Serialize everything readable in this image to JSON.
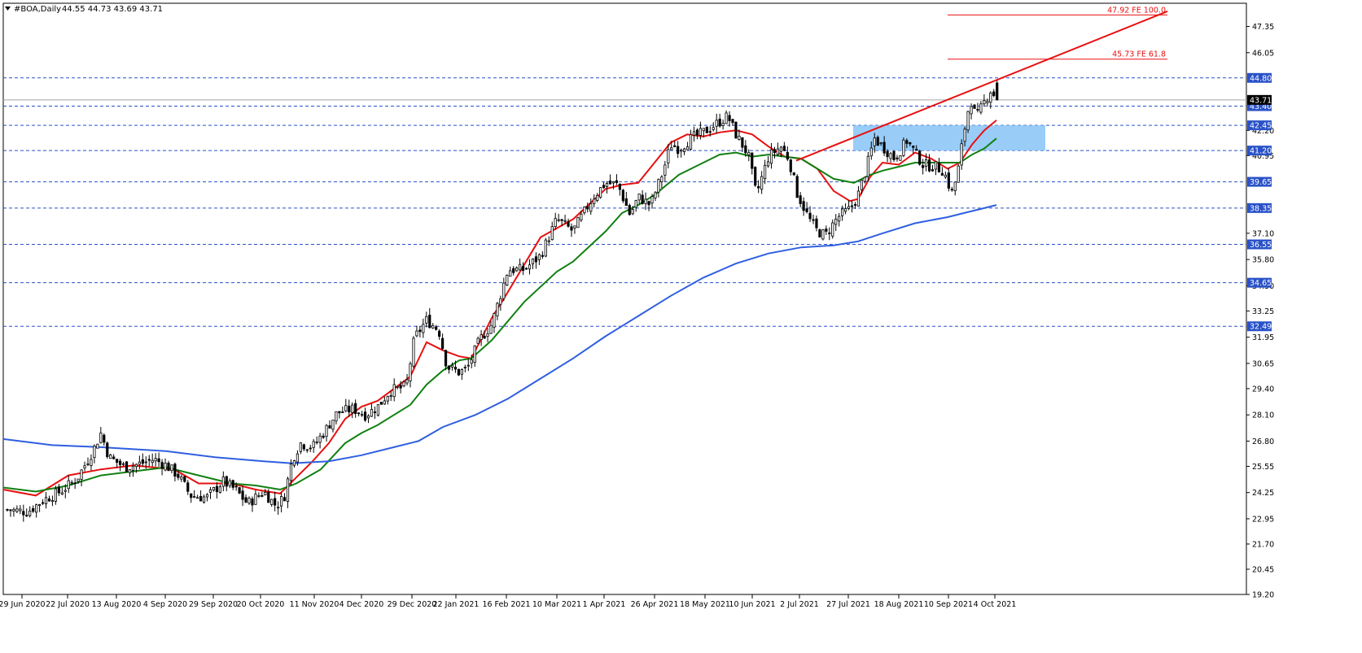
{
  "header": {
    "symbol_label": "#BOA,Daily",
    "ohlc_label": "44.55 44.73 43.69 43.71",
    "menu_icon": "triangle-down-icon"
  },
  "chart_data": {
    "type": "candlestick",
    "title": "#BOA,Daily",
    "last_ohlc": {
      "open": 44.55,
      "high": 44.73,
      "low": 43.69,
      "close": 43.71
    },
    "y_range": [
      19.2,
      48.5
    ],
    "y_ticks": [
      "47.35",
      "46.05",
      "44.80",
      "43.71",
      "43.40",
      "42.45",
      "42.20",
      "41.20",
      "40.95",
      "39.65",
      "38.35",
      "37.10",
      "36.55",
      "35.80",
      "34.65",
      "34.50",
      "33.25",
      "32.49",
      "31.95",
      "30.65",
      "29.40",
      "28.10",
      "26.80",
      "25.55",
      "24.25",
      "22.95",
      "21.70",
      "20.45",
      "19.20"
    ],
    "x_ticks": [
      "29 Jun 2020",
      "22 Jul 2020",
      "13 Aug 2020",
      "4 Sep 2020",
      "29 Sep 2020",
      "20 Oct 2020",
      "11 Nov 2020",
      "4 Dec 2020",
      "29 Dec 2020",
      "22 Jan 2021",
      "16 Feb 2021",
      "10 Mar 2021",
      "1 Apr 2021",
      "26 Apr 2021",
      "18 May 2021",
      "10 Jun 2021",
      "2 Jul 2021",
      "27 Jul 2021",
      "18 Aug 2021",
      "10 Sep 2021",
      "4 Oct 2021"
    ],
    "horizontal_levels": [
      {
        "value": 44.8,
        "label": "44.80"
      },
      {
        "value": 43.4,
        "label": "43.40"
      },
      {
        "value": 42.45,
        "label": "42.45"
      },
      {
        "value": 41.2,
        "label": "41.20"
      },
      {
        "value": 39.65,
        "label": "39.65"
      },
      {
        "value": 38.35,
        "label": "38.35"
      },
      {
        "value": 36.55,
        "label": "36.55"
      },
      {
        "value": 34.65,
        "label": "34.65"
      },
      {
        "value": 32.49,
        "label": "32.49"
      }
    ],
    "current_price": {
      "value": 43.71,
      "label": "43.71"
    },
    "fib_extensions": [
      {
        "value": 47.92,
        "label": "47.92 FE 100.0"
      },
      {
        "value": 45.73,
        "label": "45.73 FE 61.8"
      }
    ],
    "trendline": {
      "from": [
        "2 Jul 2021",
        40.7
      ],
      "to": [
        "after 4 Oct 2021",
        48.1
      ]
    },
    "zone": {
      "from": "27 Jul 2021",
      "to": "after 4 Oct 2021",
      "low": 41.2,
      "high": 42.45
    },
    "moving_averages": [
      {
        "color": "#e81010",
        "anchors": [
          [
            0,
            24.4
          ],
          [
            40,
            24.1
          ],
          [
            80,
            25.1
          ],
          [
            120,
            25.4
          ],
          [
            160,
            25.6
          ],
          [
            210,
            25.4
          ],
          [
            240,
            24.7
          ],
          [
            280,
            24.7
          ],
          [
            310,
            24.4
          ],
          [
            340,
            24.2
          ],
          [
            355,
            24.8
          ],
          [
            380,
            25.8
          ],
          [
            400,
            26.7
          ],
          [
            420,
            27.9
          ],
          [
            440,
            28.5
          ],
          [
            460,
            28.8
          ],
          [
            480,
            29.4
          ],
          [
            500,
            30.0
          ],
          [
            520,
            31.7
          ],
          [
            540,
            31.3
          ],
          [
            560,
            31.0
          ],
          [
            575,
            30.9
          ],
          [
            600,
            32.9
          ],
          [
            620,
            34.2
          ],
          [
            660,
            36.9
          ],
          [
            700,
            37.8
          ],
          [
            740,
            39.3
          ],
          [
            760,
            39.5
          ],
          [
            780,
            39.6
          ],
          [
            800,
            40.6
          ],
          [
            820,
            41.6
          ],
          [
            840,
            42.0
          ],
          [
            860,
            41.9
          ],
          [
            880,
            42.1
          ],
          [
            900,
            42.2
          ],
          [
            920,
            42.0
          ],
          [
            940,
            41.4
          ],
          [
            960,
            40.9
          ],
          [
            980,
            40.8
          ],
          [
            1000,
            40.3
          ],
          [
            1020,
            39.2
          ],
          [
            1040,
            38.7
          ],
          [
            1050,
            38.8
          ],
          [
            1065,
            39.9
          ],
          [
            1080,
            40.6
          ],
          [
            1100,
            40.5
          ],
          [
            1120,
            41.1
          ],
          [
            1140,
            40.8
          ],
          [
            1160,
            40.3
          ],
          [
            1175,
            40.6
          ],
          [
            1190,
            41.5
          ],
          [
            1205,
            42.2
          ],
          [
            1220,
            42.7
          ]
        ]
      },
      {
        "color": "#108010",
        "anchors": [
          [
            0,
            24.5
          ],
          [
            40,
            24.3
          ],
          [
            80,
            24.6
          ],
          [
            120,
            25.1
          ],
          [
            160,
            25.3
          ],
          [
            200,
            25.5
          ],
          [
            240,
            25.1
          ],
          [
            280,
            24.7
          ],
          [
            310,
            24.6
          ],
          [
            340,
            24.4
          ],
          [
            360,
            24.7
          ],
          [
            390,
            25.4
          ],
          [
            420,
            26.7
          ],
          [
            440,
            27.2
          ],
          [
            460,
            27.6
          ],
          [
            480,
            28.1
          ],
          [
            500,
            28.6
          ],
          [
            520,
            29.6
          ],
          [
            540,
            30.3
          ],
          [
            560,
            30.8
          ],
          [
            575,
            30.9
          ],
          [
            600,
            31.8
          ],
          [
            640,
            33.7
          ],
          [
            680,
            35.2
          ],
          [
            700,
            35.7
          ],
          [
            740,
            37.2
          ],
          [
            760,
            38.1
          ],
          [
            780,
            38.5
          ],
          [
            800,
            39.0
          ],
          [
            830,
            40.0
          ],
          [
            860,
            40.6
          ],
          [
            880,
            41.0
          ],
          [
            900,
            41.1
          ],
          [
            920,
            40.9
          ],
          [
            940,
            41.0
          ],
          [
            960,
            40.9
          ],
          [
            980,
            40.8
          ],
          [
            1000,
            40.3
          ],
          [
            1020,
            39.8
          ],
          [
            1045,
            39.6
          ],
          [
            1065,
            40.0
          ],
          [
            1080,
            40.2
          ],
          [
            1100,
            40.4
          ],
          [
            1120,
            40.6
          ],
          [
            1140,
            40.6
          ],
          [
            1160,
            40.6
          ],
          [
            1175,
            40.6
          ],
          [
            1190,
            41.0
          ],
          [
            1205,
            41.3
          ],
          [
            1220,
            41.8
          ]
        ]
      },
      {
        "color": "#2f5fe0",
        "anchors": [
          [
            0,
            26.9
          ],
          [
            60,
            26.6
          ],
          [
            120,
            26.5
          ],
          [
            200,
            26.3
          ],
          [
            260,
            26.0
          ],
          [
            320,
            25.8
          ],
          [
            355,
            25.7
          ],
          [
            400,
            25.8
          ],
          [
            440,
            26.1
          ],
          [
            480,
            26.5
          ],
          [
            510,
            26.8
          ],
          [
            540,
            27.5
          ],
          [
            580,
            28.1
          ],
          [
            620,
            28.9
          ],
          [
            660,
            29.9
          ],
          [
            700,
            30.9
          ],
          [
            740,
            32.0
          ],
          [
            780,
            33.0
          ],
          [
            820,
            34.0
          ],
          [
            860,
            34.9
          ],
          [
            900,
            35.6
          ],
          [
            940,
            36.1
          ],
          [
            980,
            36.4
          ],
          [
            1020,
            36.5
          ],
          [
            1050,
            36.7
          ],
          [
            1080,
            37.1
          ],
          [
            1120,
            37.6
          ],
          [
            1160,
            37.9
          ],
          [
            1180,
            38.1
          ],
          [
            1200,
            38.3
          ],
          [
            1220,
            38.5
          ]
        ]
      }
    ],
    "price_path_anchors": [
      [
        5,
        23.4
      ],
      [
        30,
        23.3
      ],
      [
        50,
        23.9
      ],
      [
        70,
        24.3
      ],
      [
        90,
        24.9
      ],
      [
        110,
        26.3
      ],
      [
        120,
        27.2
      ],
      [
        130,
        26.0
      ],
      [
        150,
        25.5
      ],
      [
        170,
        25.7
      ],
      [
        185,
        25.9
      ],
      [
        200,
        25.6
      ],
      [
        215,
        25.1
      ],
      [
        230,
        24.1
      ],
      [
        250,
        24.0
      ],
      [
        270,
        24.8
      ],
      [
        285,
        24.4
      ],
      [
        300,
        23.7
      ],
      [
        320,
        24.3
      ],
      [
        335,
        23.6
      ],
      [
        345,
        24.0
      ],
      [
        355,
        25.9
      ],
      [
        365,
        26.7
      ],
      [
        380,
        26.5
      ],
      [
        395,
        27.3
      ],
      [
        410,
        28.2
      ],
      [
        430,
        28.4
      ],
      [
        445,
        28.1
      ],
      [
        460,
        28.5
      ],
      [
        475,
        29.3
      ],
      [
        495,
        29.5
      ],
      [
        505,
        31.9
      ],
      [
        520,
        32.8
      ],
      [
        535,
        32.3
      ],
      [
        545,
        30.5
      ],
      [
        560,
        30.2
      ],
      [
        570,
        30.4
      ],
      [
        585,
        31.8
      ],
      [
        600,
        32.6
      ],
      [
        620,
        35.3
      ],
      [
        640,
        35.3
      ],
      [
        660,
        36.0
      ],
      [
        680,
        37.8
      ],
      [
        700,
        37.2
      ],
      [
        710,
        37.9
      ],
      [
        725,
        38.9
      ],
      [
        740,
        39.6
      ],
      [
        755,
        39.5
      ],
      [
        770,
        38.0
      ],
      [
        780,
        38.9
      ],
      [
        795,
        38.5
      ],
      [
        810,
        40.1
      ],
      [
        820,
        41.5
      ],
      [
        830,
        41.3
      ],
      [
        845,
        41.8
      ],
      [
        860,
        42.1
      ],
      [
        875,
        42.5
      ],
      [
        890,
        42.9
      ],
      [
        900,
        42.0
      ],
      [
        915,
        41.0
      ],
      [
        925,
        39.0
      ],
      [
        940,
        40.9
      ],
      [
        955,
        41.4
      ],
      [
        965,
        40.8
      ],
      [
        975,
        39.1
      ],
      [
        990,
        37.8
      ],
      [
        1000,
        37.2
      ],
      [
        1010,
        37.0
      ],
      [
        1025,
        37.9
      ],
      [
        1040,
        38.3
      ],
      [
        1050,
        39.0
      ],
      [
        1060,
        40.3
      ],
      [
        1070,
        41.8
      ],
      [
        1085,
        41.2
      ],
      [
        1095,
        40.8
      ],
      [
        1110,
        41.7
      ],
      [
        1120,
        41.1
      ],
      [
        1130,
        40.5
      ],
      [
        1145,
        40.4
      ],
      [
        1155,
        40.2
      ],
      [
        1165,
        39.1
      ],
      [
        1172,
        40.0
      ],
      [
        1180,
        42.1
      ],
      [
        1188,
        43.8
      ],
      [
        1195,
        42.8
      ],
      [
        1205,
        43.6
      ],
      [
        1213,
        44.2
      ],
      [
        1221,
        43.7
      ]
    ]
  }
}
